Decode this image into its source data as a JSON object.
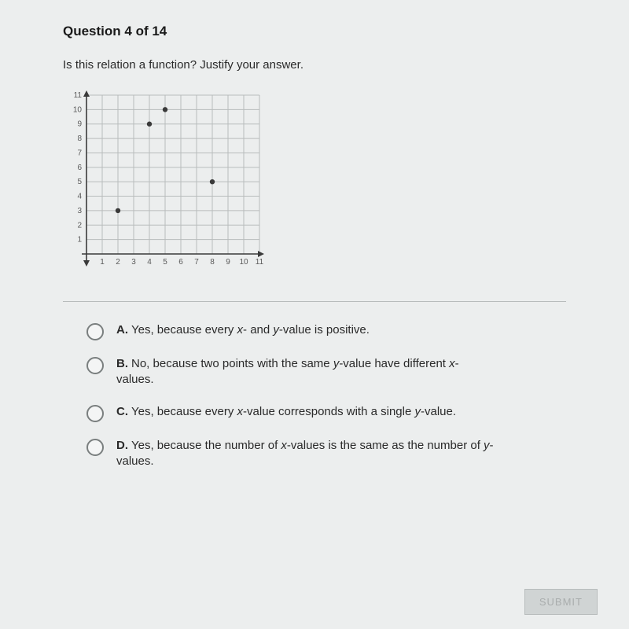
{
  "header": {
    "title": "Question 4 of 14"
  },
  "prompt": "Is this relation a function? Justify your answer.",
  "graph": {
    "type": "scatter",
    "xlim": [
      0,
      11
    ],
    "ylim": [
      0,
      11
    ],
    "xtick_labels": [
      "1",
      "2",
      "3",
      "4",
      "5",
      "6",
      "7",
      "8",
      "9",
      "10",
      "11"
    ],
    "ytick_labels": [
      "1",
      "2",
      "3",
      "4",
      "5",
      "6",
      "7",
      "8",
      "9",
      "10",
      "11"
    ],
    "grid_color": "#b8bcbc",
    "axis_color": "#3a3a3a",
    "background_color": "#eceeee",
    "point_color": "#3a3a3a",
    "point_radius": 3.2,
    "label_fontsize": 10,
    "label_color": "#5a5a5a",
    "points": [
      {
        "x": 2,
        "y": 3
      },
      {
        "x": 4,
        "y": 9
      },
      {
        "x": 5,
        "y": 10
      },
      {
        "x": 8,
        "y": 5
      }
    ]
  },
  "options": [
    {
      "letter": "A.",
      "pre": "Yes, because every ",
      "i1": "x",
      "mid1": "- and ",
      "i2": "y",
      "mid2": "-value is positive.",
      "post": ""
    },
    {
      "letter": "B.",
      "pre": "No, because two points with the same ",
      "i1": "y",
      "mid1": "-value have different ",
      "i2": "x",
      "mid2": "-values.",
      "post": ""
    },
    {
      "letter": "C.",
      "pre": "Yes, because every ",
      "i1": "x",
      "mid1": "-value corresponds with a single ",
      "i2": "y",
      "mid2": "-value.",
      "post": ""
    },
    {
      "letter": "D.",
      "pre": "Yes, because the number of ",
      "i1": "x",
      "mid1": "-values is the same as the number of ",
      "i2": "y",
      "mid2": "-values.",
      "post": ""
    }
  ],
  "submit_label": "SUBMIT"
}
